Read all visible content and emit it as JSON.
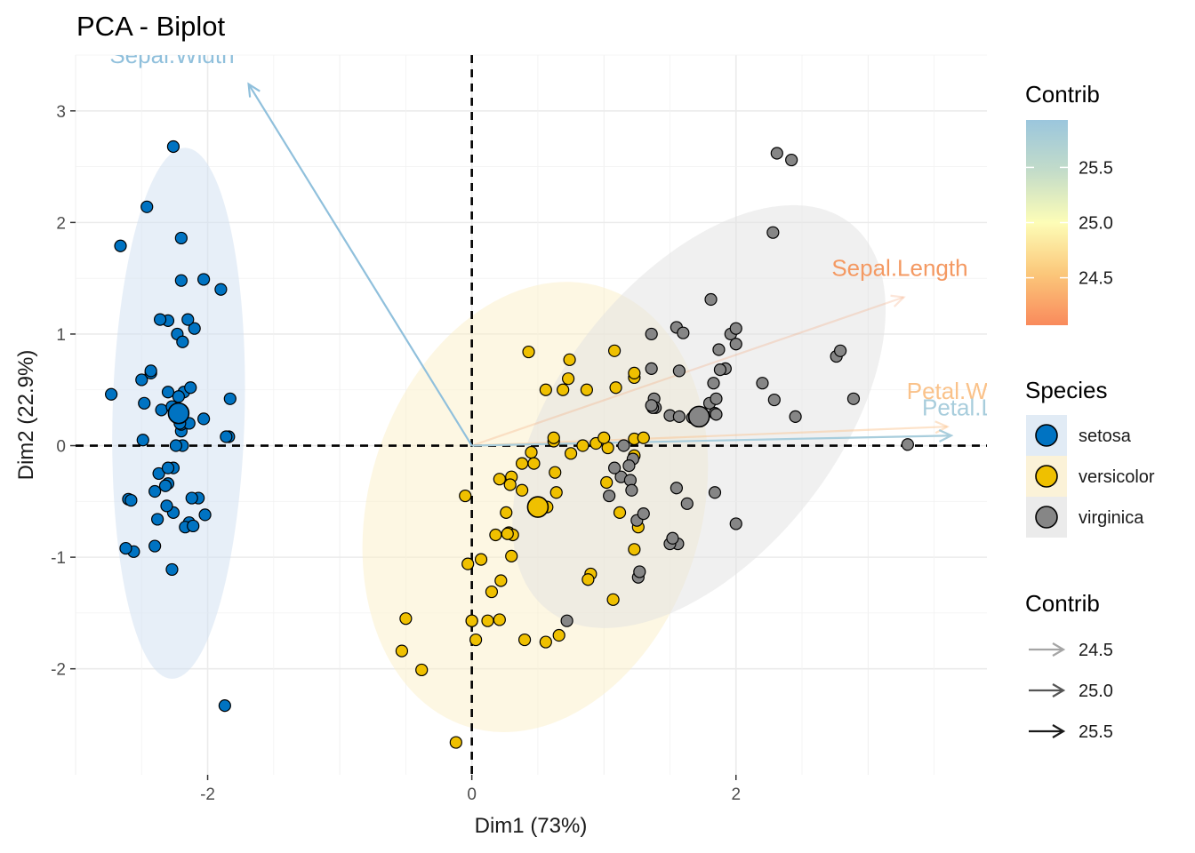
{
  "chart_data": {
    "type": "scatter",
    "title": "PCA - Biplot",
    "xlabel": "Dim1 (73%)",
    "ylabel": "Dim2 (22.9%)",
    "xlim": [
      -3.0,
      3.9
    ],
    "ylim": [
      -2.95,
      3.5
    ],
    "x_ticks": [
      -2,
      0,
      2
    ],
    "x_tick_labels": [
      "-2",
      "0",
      "2"
    ],
    "y_ticks": [
      -2,
      -1,
      0,
      1,
      2,
      3
    ],
    "y_tick_labels": [
      "-2",
      "-1",
      "0",
      "1",
      "2",
      "3"
    ],
    "grid": true,
    "legend_position": "right",
    "series": [
      {
        "name": "setosa",
        "color": "#0073C2",
        "fill_color": "#cfe0f2",
        "centroid": [
          -2.22,
          0.29
        ],
        "ellipse": {
          "center": [
            -2.22,
            0.29
          ],
          "rx": 0.5,
          "ry": 2.38,
          "angle": 1.5
        },
        "x": [
          -2.26,
          -2.46,
          -2.66,
          -2.2,
          -1.9,
          -2.2,
          -1.83,
          -2.3,
          -2.5,
          -2.1,
          -2.03,
          -2.15,
          -1.87,
          -2.4,
          -2.27,
          -2.23,
          -2.19,
          -2.3,
          -2.07,
          -2.14,
          -1.84,
          -2.3,
          -2.56,
          -2.26,
          -2.17,
          -2.43,
          -2.36,
          -2.18,
          -2.22,
          -2.13,
          -2.24,
          -2.03,
          -2.35,
          -2.31,
          -2.49,
          -2.2,
          -2.26,
          -2.4,
          -2.32,
          -2.12,
          -2.02,
          -2.43,
          -2.2,
          -2.27,
          -2.6,
          -2.37,
          -2.38,
          -2.62,
          -2.48,
          -2.14,
          -2.3,
          -2.19,
          -2.73,
          -1.86,
          -2.58,
          -2.24,
          -2.21,
          -2.11
        ],
        "y": [
          2.68,
          2.14,
          1.79,
          1.86,
          1.4,
          1.48,
          0.42,
          1.12,
          0.59,
          1.05,
          1.49,
          1.13,
          -2.33,
          -0.9,
          -1.11,
          1.0,
          0.93,
          0.48,
          -0.47,
          -0.69,
          0.08,
          -0.34,
          -0.95,
          -0.6,
          -0.73,
          0.65,
          1.13,
          0.48,
          0.44,
          0.52,
          0.3,
          0.24,
          0.32,
          -0.54,
          0.05,
          0.13,
          -0.2,
          -0.41,
          -0.36,
          -0.47,
          -0.62,
          0.67,
          0.19,
          0.35,
          -0.48,
          -0.25,
          -0.66,
          -0.92,
          0.38,
          0.2,
          -0.2,
          0.0,
          0.46,
          0.08,
          -0.49,
          0.0,
          0.2,
          -0.72
        ]
      },
      {
        "name": "versicolor",
        "color": "#EFC000",
        "fill_color": "#fbefc8",
        "centroid": [
          0.5,
          -0.55
        ],
        "ellipse": {
          "center": [
            0.48,
            -0.55
          ],
          "rx": 1.26,
          "ry": 2.06,
          "angle": 17
        },
        "x": [
          0.43,
          0.74,
          0.73,
          1.08,
          0.87,
          1.23,
          0.69,
          0.62,
          0.45,
          0.75,
          0.56,
          0.38,
          0.63,
          0.3,
          0.21,
          0.47,
          0.38,
          0.57,
          0.64,
          0.26,
          0.28,
          0.3,
          0.22,
          0.15,
          -0.03,
          0.0,
          -0.05,
          0.29,
          0.31,
          0.27,
          0.18,
          0.21,
          0.07,
          0.0,
          0.12,
          0.03,
          -0.5,
          -0.53,
          -0.38,
          -0.12,
          0.4,
          0.56,
          1.07,
          1.23,
          1.26,
          1.12,
          1.02,
          1.23,
          1.23,
          1.3,
          1.09,
          1.23,
          1.03,
          0.94,
          1.0,
          0.62,
          0.84,
          0.9,
          0.66,
          0.88
        ],
        "y": [
          0.84,
          0.77,
          0.6,
          0.85,
          0.5,
          0.61,
          0.5,
          0.04,
          -0.06,
          -0.07,
          0.5,
          -0.4,
          -0.24,
          -0.28,
          -0.3,
          -0.16,
          -0.16,
          -0.55,
          -0.42,
          -0.6,
          -0.78,
          -0.99,
          -1.21,
          -1.31,
          -1.06,
          -1.57,
          -0.45,
          -0.35,
          -0.8,
          -0.79,
          -0.8,
          -1.56,
          -1.02,
          -1.57,
          -1.57,
          -1.74,
          -1.55,
          -1.84,
          -2.01,
          -2.66,
          -1.74,
          -1.76,
          -1.38,
          -0.93,
          -0.73,
          -0.6,
          -0.33,
          -0.09,
          0.06,
          0.07,
          0.52,
          0.65,
          -0.02,
          0.02,
          0.07,
          0.07,
          0.0,
          -1.15,
          -1.7,
          -1.2
        ]
      },
      {
        "name": "virginica",
        "color": "#868686",
        "fill_color": "#e1e1e1",
        "centroid": [
          1.72,
          0.26
        ],
        "ellipse": {
          "center": [
            1.72,
            0.26
          ],
          "rx": 1.05,
          "ry": 2.2,
          "angle": 38
        },
        "x": [
          2.31,
          2.42,
          2.28,
          1.81,
          1.96,
          2.0,
          2.0,
          1.55,
          1.36,
          1.6,
          1.87,
          1.92,
          1.88,
          1.36,
          1.38,
          1.57,
          1.83,
          1.8,
          1.85,
          1.84,
          2.2,
          2.29,
          2.45,
          2.76,
          2.79,
          2.89,
          3.3,
          1.5,
          1.39,
          1.57,
          1.85,
          1.37,
          1.36,
          1.67,
          1.15,
          1.22,
          1.19,
          1.04,
          1.13,
          1.2,
          1.25,
          1.55,
          1.63,
          1.84,
          2.0,
          1.56,
          1.21,
          1.26,
          0.72,
          1.5,
          1.52,
          1.27,
          1.08,
          1.3
        ],
        "y": [
          2.62,
          2.56,
          1.91,
          1.31,
          1.0,
          1.05,
          0.91,
          1.06,
          1.0,
          1.01,
          0.86,
          0.69,
          0.68,
          0.69,
          0.42,
          0.67,
          0.56,
          0.38,
          0.42,
          0.29,
          0.56,
          0.41,
          0.26,
          0.8,
          0.85,
          0.42,
          0.01,
          0.27,
          0.34,
          0.26,
          0.28,
          0.34,
          0.36,
          0.25,
          0.0,
          -0.12,
          -0.18,
          -0.45,
          -0.28,
          -0.31,
          -0.67,
          -0.38,
          -0.52,
          -0.42,
          -0.7,
          -0.88,
          -0.4,
          -1.18,
          -1.57,
          -0.88,
          -0.83,
          -1.13,
          -0.2,
          -0.61
        ]
      }
    ],
    "variables": [
      {
        "name": "Sepal.Width",
        "x": -1.69,
        "y": 3.24,
        "label_x": -2.27,
        "label_y": 3.43,
        "contrib": 25.9,
        "color": "#90c0dc"
      },
      {
        "name": "Sepal.Length",
        "x": 3.27,
        "y": 1.33,
        "label_x": 3.24,
        "label_y": 1.52,
        "contrib": 24.1,
        "color": "#f49962"
      },
      {
        "name": "Petal.Width",
        "x": 3.6,
        "y": 0.17,
        "label_x": 3.74,
        "label_y": 0.42,
        "contrib": 24.4,
        "color": "#fac28a"
      },
      {
        "name": "Petal.Length",
        "x": 3.63,
        "y": 0.09,
        "label_x": 3.9,
        "label_y": 0.27,
        "contrib": 25.6,
        "color": "#a8cddc"
      }
    ]
  },
  "legends": {
    "contrib_colorbar": {
      "title": "Contrib",
      "labels": [
        "25.5",
        "25.0",
        "24.5"
      ],
      "values": [
        25.5,
        25.0,
        24.5
      ],
      "range": [
        24.07,
        25.93
      ],
      "colors": [
        "#f98a5c",
        "#fbc77a",
        "#fdfdb7",
        "#c3dcc9",
        "#9bc6dd"
      ]
    },
    "species": {
      "title": "Species",
      "items": [
        {
          "label": "setosa",
          "color": "#0073C2",
          "bg": "#e1ebf5"
        },
        {
          "label": "versicolor",
          "color": "#EFC000",
          "bg": "#fbf2d8"
        },
        {
          "label": "virginica",
          "color": "#868686",
          "bg": "#ebebeb"
        }
      ]
    },
    "contrib_arrows": {
      "title": "Contrib",
      "items": [
        {
          "label": "24.5",
          "color": "#a5a5a5"
        },
        {
          "label": "25.0",
          "color": "#555555"
        },
        {
          "label": "25.5",
          "color": "#1a1a1a"
        }
      ]
    }
  }
}
